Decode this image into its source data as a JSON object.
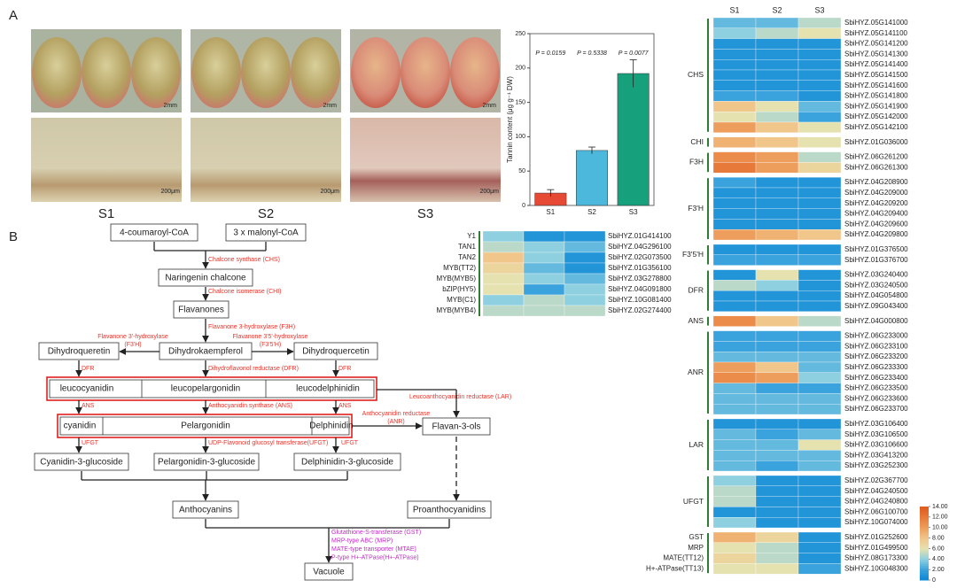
{
  "panels": {
    "a": "A",
    "b": "B"
  },
  "photos": {
    "samples": [
      "S1",
      "S2",
      "S3"
    ],
    "scale_top": "2mm",
    "scale_bottom": "200μm"
  },
  "chart_data": {
    "type": "bar",
    "ylabel": "Tannin content (μg g⁻¹ DW)",
    "categories": [
      "S1",
      "S2",
      "S3"
    ],
    "values": [
      18,
      80,
      192
    ],
    "errors": [
      5,
      5,
      20
    ],
    "colors": [
      "#e64a35",
      "#4cb8dc",
      "#16a07c"
    ],
    "annotations": [
      "P = 0.0159",
      "P = 0.5338",
      "P = 0.0077"
    ],
    "ylim": [
      0,
      250
    ],
    "yticks": [
      0,
      50,
      100,
      150,
      200,
      250
    ]
  },
  "pathway": {
    "substrates": [
      "4-coumaroyl-CoA",
      "3 x malonyl-CoA"
    ],
    "intermediates": [
      "Naringenin chalcone",
      "Flavanones"
    ],
    "dihydroflavonols": [
      "Dihydroqueretin",
      "Dihydrokaempferol",
      "Dihydroquercetin"
    ],
    "leucoanthocyanidins": [
      "leucocyanidin",
      "leucopelargonidin",
      "leucodelphinidin"
    ],
    "anthocyanidins": [
      "cyanidin",
      "Pelargonidin",
      "Delphinidin"
    ],
    "glucosides": [
      "Cyanidin-3-glucoside",
      "Pelargonidin-3-glucoside",
      "Delphinidin-3-glucoside"
    ],
    "flavan": "Flavan-3-ols",
    "products": [
      "Anthocyanins",
      "Proanthocyanidins"
    ],
    "vacuole": "Vacuole",
    "enzymes": {
      "chs": "Chalcone synthase (CHS)",
      "chi": "Chalcone isomerase (CHI)",
      "f3h": "Flavanone 3-hydroxylase (F3H)",
      "f3ph": [
        "Flavanone 3'-hydroxylase",
        "(F3'H)"
      ],
      "f35h": [
        "Flavanone 3'5'-hydroxylase",
        "(F3'5'H)"
      ],
      "dfr": [
        "DFR",
        "Dihydroflavonol reductase (DFR)",
        "DFR"
      ],
      "lar": "Leucoanthocyanidin reductase (LAR)",
      "ans": [
        "ANS",
        "Anthocyanidin synthase (ANS)",
        "ANS"
      ],
      "anr": [
        "Anthocyanidin reductase",
        "(ANR)"
      ],
      "ufgt": [
        "UFGT",
        "UDP-Flavonoid glucosyl transferase(UFGT)",
        "UFGT"
      ]
    },
    "transport": [
      "Glutathione-S-transferase (GST)",
      "MRP-type ABC (MRP)",
      "MATE-type transporter (MTAE)",
      "P-type H+-ATPase(H+-ATPase)"
    ]
  },
  "regulators_heatmap": {
    "rows": [
      {
        "label": "Y1",
        "gene": "SbiHYZ.01G414100",
        "values": [
          4,
          1,
          1
        ]
      },
      {
        "label": "TAN1",
        "gene": "SbiHYZ.04G296100",
        "values": [
          5,
          4,
          3
        ]
      },
      {
        "label": "TAN2",
        "gene": "SbiHYZ.02G073500",
        "values": [
          8,
          4,
          1
        ]
      },
      {
        "label": "MYB(TT2)",
        "gene": "SbiHYZ.01G356100",
        "values": [
          7,
          3,
          1
        ]
      },
      {
        "label": "MYB(MYB5)",
        "gene": "SbiHYZ.03G278800",
        "values": [
          6,
          4,
          3
        ]
      },
      {
        "label": "bZIP(HY5)",
        "gene": "SbiHYZ.04G091800",
        "values": [
          6,
          2,
          4
        ]
      },
      {
        "label": "MYB(C1)",
        "gene": "SbiHYZ.10G081400",
        "values": [
          4,
          5,
          4
        ]
      },
      {
        "label": "MYB(MYB4)",
        "gene": "SbiHYZ.02G274400",
        "values": [
          5,
          5,
          5
        ]
      }
    ]
  },
  "heatmap": {
    "columns": [
      "S1",
      "S2",
      "S3"
    ],
    "clim": [
      0,
      14
    ],
    "colorscale": [
      "#0a86d4",
      "#3aa2dc",
      "#8ecfe0",
      "#e6e2b0",
      "#f1c68a",
      "#ee9e5c",
      "#e77a3a",
      "#e05a1e"
    ],
    "colorbar_ticks": [
      {
        "value": 14,
        "label": "14.00"
      },
      {
        "value": 12,
        "label": "12.00"
      },
      {
        "value": 10,
        "label": "10.00"
      },
      {
        "value": 8,
        "label": "8.00"
      },
      {
        "value": 6,
        "label": "6.00"
      },
      {
        "value": 4,
        "label": "4.00"
      },
      {
        "value": 2,
        "label": "2.00"
      },
      0
    ],
    "groups": [
      {
        "label": "CHS",
        "rows": [
          {
            "gene": "SbiHYZ.05G141000",
            "values": [
              3,
              3,
              5
            ]
          },
          {
            "gene": "SbiHYZ.05G141100",
            "values": [
              4,
              5,
              6
            ]
          },
          {
            "gene": "SbiHYZ.05G141200",
            "values": [
              1,
              1,
              1
            ]
          },
          {
            "gene": "SbiHYZ.05G141300",
            "values": [
              1,
              1,
              1
            ]
          },
          {
            "gene": "SbiHYZ.05G141400",
            "values": [
              1,
              1,
              1
            ]
          },
          {
            "gene": "SbiHYZ.05G141500",
            "values": [
              1,
              1,
              1
            ]
          },
          {
            "gene": "SbiHYZ.05G141600",
            "values": [
              1,
              1,
              1
            ]
          },
          {
            "gene": "SbiHYZ.05G141800",
            "values": [
              2,
              2,
              1
            ]
          },
          {
            "gene": "SbiHYZ.05G141900",
            "values": [
              8,
              6,
              3
            ]
          },
          {
            "gene": "SbiHYZ.05G142000",
            "values": [
              6,
              5,
              2
            ]
          },
          {
            "gene": "SbiHYZ.05G142100",
            "values": [
              10,
              8,
              6
            ]
          }
        ]
      },
      {
        "label": "CHI",
        "rows": [
          {
            "gene": "SbiHYZ.01G036000",
            "values": [
              9,
              8,
              6
            ]
          }
        ]
      },
      {
        "label": "F3H",
        "rows": [
          {
            "gene": "SbiHYZ.06G261200",
            "values": [
              11,
              10,
              5
            ]
          },
          {
            "gene": "SbiHYZ.06G261300",
            "values": [
              12,
              10,
              7
            ]
          }
        ]
      },
      {
        "label": "F3'H",
        "rows": [
          {
            "gene": "SbiHYZ.04G208900",
            "values": [
              2,
              1,
              1
            ]
          },
          {
            "gene": "SbiHYZ.04G209000",
            "values": [
              1,
              1,
              1
            ]
          },
          {
            "gene": "SbiHYZ.04G209200",
            "values": [
              1,
              1,
              1
            ]
          },
          {
            "gene": "SbiHYZ.04G209400",
            "values": [
              1,
              1,
              1
            ]
          },
          {
            "gene": "SbiHYZ.04G209600",
            "values": [
              1,
              1,
              1
            ]
          },
          {
            "gene": "SbiHYZ.04G209800",
            "values": [
              10,
              9,
              8
            ]
          }
        ]
      },
      {
        "label": "F3'5'H",
        "rows": [
          {
            "gene": "SbiHYZ.01G376500",
            "values": [
              1,
              1,
              1
            ]
          },
          {
            "gene": "SbiHYZ.01G376700",
            "values": [
              2,
              2,
              2
            ]
          }
        ]
      },
      {
        "label": "DFR",
        "rows": [
          {
            "gene": "SbiHYZ.03G240400",
            "values": [
              1,
              6,
              1
            ]
          },
          {
            "gene": "SbiHYZ.03G240500",
            "values": [
              5,
              4,
              1
            ]
          },
          {
            "gene": "SbiHYZ.04G054800",
            "values": [
              1,
              1,
              1
            ]
          },
          {
            "gene": "SbiHYZ.09G043400",
            "values": [
              1,
              1,
              1
            ]
          }
        ]
      },
      {
        "label": "ANS",
        "rows": [
          {
            "gene": "SbiHYZ.04G000800",
            "values": [
              11,
              8,
              5
            ]
          }
        ]
      },
      {
        "label": "ANR",
        "rows": [
          {
            "gene": "SbiHYZ.06G233000",
            "values": [
              2,
              2,
              2
            ]
          },
          {
            "gene": "SbiHYZ.06G233100",
            "values": [
              2,
              2,
              2
            ]
          },
          {
            "gene": "SbiHYZ.06G233200",
            "values": [
              3,
              3,
              3
            ]
          },
          {
            "gene": "SbiHYZ.06G233300",
            "values": [
              10,
              8,
              3
            ]
          },
          {
            "gene": "SbiHYZ.06G233400",
            "values": [
              11,
              10,
              4
            ]
          },
          {
            "gene": "SbiHYZ.06G233500",
            "values": [
              3,
              2,
              2
            ]
          },
          {
            "gene": "SbiHYZ.06G233600",
            "values": [
              3,
              3,
              3
            ]
          },
          {
            "gene": "SbiHYZ.06G233700",
            "values": [
              3,
              3,
              3
            ]
          }
        ]
      },
      {
        "label": "LAR",
        "rows": [
          {
            "gene": "SbiHYZ.03G106400",
            "values": [
              1,
              1,
              1
            ]
          },
          {
            "gene": "SbiHYZ.03G106500",
            "values": [
              3,
              2,
              3
            ]
          },
          {
            "gene": "SbiHYZ.03G106600",
            "values": [
              3,
              3,
              6
            ]
          },
          {
            "gene": "SbiHYZ.03G413200",
            "values": [
              3,
              3,
              3
            ]
          },
          {
            "gene": "SbiHYZ.03G252300",
            "values": [
              3,
              2,
              3
            ]
          }
        ]
      },
      {
        "label": "UFGT",
        "rows": [
          {
            "gene": "SbiHYZ.02G367700",
            "values": [
              4,
              1,
              1
            ]
          },
          {
            "gene": "SbiHYZ.04G240500",
            "values": [
              5,
              1,
              1
            ]
          },
          {
            "gene": "SbiHYZ.04G240800",
            "values": [
              5,
              1,
              1
            ]
          },
          {
            "gene": "SbiHYZ.06G100700",
            "values": [
              1,
              1,
              1
            ]
          },
          {
            "gene": "SbiHYZ.10G074000",
            "values": [
              4,
              1,
              1
            ]
          }
        ]
      },
      {
        "rows": [
          {
            "label": "GST",
            "gene": "SbiHYZ.01G252600",
            "values": [
              9,
              7,
              1
            ]
          },
          {
            "label": "MRP",
            "gene": "SbiHYZ.01G499500",
            "values": [
              6,
              5,
              1
            ]
          },
          {
            "label": "MATE(TT12)",
            "gene": "SbiHYZ.08G173300",
            "values": [
              7,
              5,
              1
            ]
          },
          {
            "label": "H+-ATPase(TT13)",
            "gene": "SbiHYZ.10G048300",
            "values": [
              6,
              6,
              2
            ]
          }
        ]
      }
    ]
  }
}
